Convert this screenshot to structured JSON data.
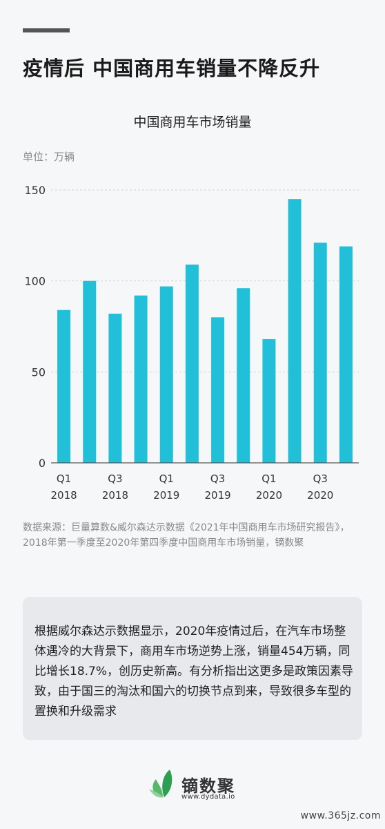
{
  "header": {
    "headline": "疫情后  中国商用车销量不降反升"
  },
  "chart_data": {
    "type": "bar",
    "title": "中国商用车市场销量",
    "unit_label": "单位：万辆",
    "categories": [
      "Q1 2018",
      "Q2 2018",
      "Q3 2018",
      "Q4 2018",
      "Q1 2019",
      "Q2 2019",
      "Q3 2019",
      "Q4 2019",
      "Q1 2020",
      "Q2 2020",
      "Q3 2020",
      "Q4 2020"
    ],
    "values": [
      84,
      100,
      82,
      92,
      97,
      109,
      80,
      96,
      68,
      145,
      121,
      119
    ],
    "x_tick_labels": [
      {
        "index": 0,
        "line1": "Q1",
        "line2": "2018"
      },
      {
        "index": 2,
        "line1": "Q3",
        "line2": "2018"
      },
      {
        "index": 4,
        "line1": "Q1",
        "line2": "2019"
      },
      {
        "index": 6,
        "line1": "Q3",
        "line2": "2019"
      },
      {
        "index": 8,
        "line1": "Q1",
        "line2": "2020"
      },
      {
        "index": 10,
        "line1": "Q3",
        "line2": "2020"
      }
    ],
    "y_ticks": [
      0,
      50,
      100,
      150
    ],
    "ylim": [
      0,
      150
    ],
    "grid": true,
    "bar_color": "#22c0d8"
  },
  "source_text": "数据来源：巨量算数&威尔森达示数据《2021年中国商用车市场研究报告》，2018年第一季度至2020年第四季度中国商用车市场销量，镝数聚",
  "summary_text": "根据威尔森达示数据显示，2020年疫情过后，在汽车市场整体遇冷的大背景下，商用车市场逆势上涨，销量454万辆，同比增长18.7%，创历史新高。有分析指出这更多是政策因素导致，由于国三的淘汰和国六的切换节点到来，导致很多车型的置换和升级需求",
  "footer": {
    "logo_icon": "leaf-logo-icon",
    "brand_name": "镝数聚",
    "url": "www.dydata.io"
  },
  "watermark": "www.365jz.com"
}
